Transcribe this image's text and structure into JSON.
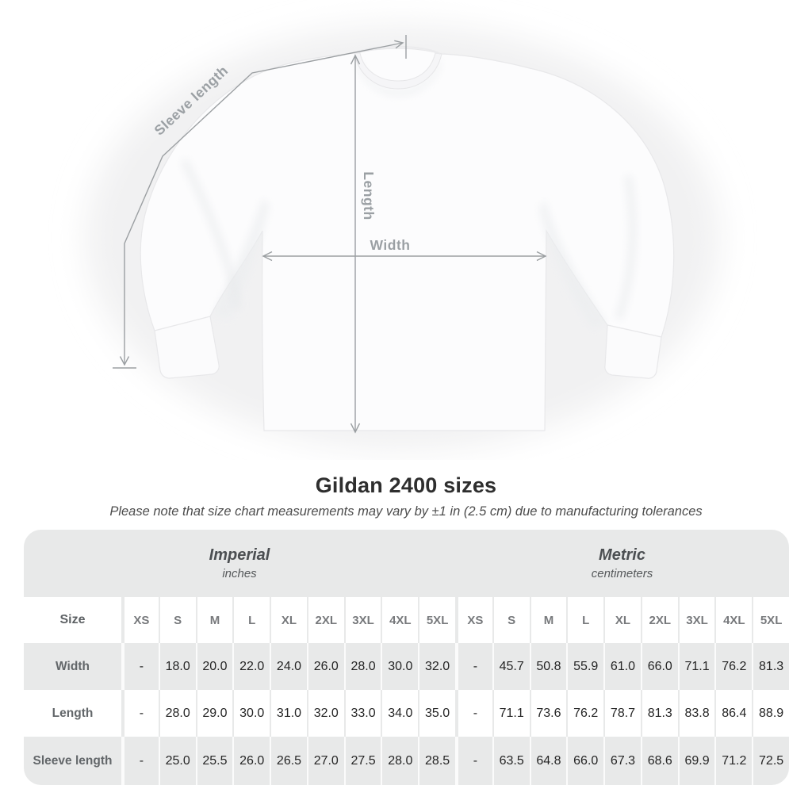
{
  "heading": {
    "title": "Gildan 2400 sizes",
    "subtitle": "Please note that size chart measurements may vary by ±1 in (2.5 cm) due to manufacturing tolerances"
  },
  "diagram": {
    "labels": {
      "sleeve_length": "Sleeve length",
      "length": "Length",
      "width": "Width"
    },
    "line_color": "#9b9fa2",
    "label_color": "#9ba0a4",
    "shirt_color": "#fcfcfd"
  },
  "chart_data": {
    "type": "table",
    "title": "Gildan 2400 sizes",
    "unit_groups": [
      {
        "label": "Imperial",
        "sublabel": "inches"
      },
      {
        "label": "Metric",
        "sublabel": "centimeters"
      }
    ],
    "size_label": "Size",
    "sizes": [
      "XS",
      "S",
      "M",
      "L",
      "XL",
      "2XL",
      "3XL",
      "4XL",
      "5XL"
    ],
    "rows": [
      {
        "label": "Width",
        "imperial": [
          "-",
          "18.0",
          "20.0",
          "22.0",
          "24.0",
          "26.0",
          "28.0",
          "30.0",
          "32.0"
        ],
        "metric": [
          "-",
          "45.7",
          "50.8",
          "55.9",
          "61.0",
          "66.0",
          "71.1",
          "76.2",
          "81.3"
        ]
      },
      {
        "label": "Length",
        "imperial": [
          "-",
          "28.0",
          "29.0",
          "30.0",
          "31.0",
          "32.0",
          "33.0",
          "34.0",
          "35.0"
        ],
        "metric": [
          "-",
          "71.1",
          "73.6",
          "76.2",
          "78.7",
          "81.3",
          "83.8",
          "86.4",
          "88.9"
        ]
      },
      {
        "label": "Sleeve length",
        "imperial": [
          "-",
          "25.0",
          "25.5",
          "26.0",
          "26.5",
          "27.0",
          "27.5",
          "28.0",
          "28.5"
        ],
        "metric": [
          "-",
          "63.5",
          "64.8",
          "66.0",
          "67.3",
          "68.6",
          "69.9",
          "71.2",
          "72.5"
        ]
      }
    ],
    "colors": {
      "band_gray": "#e8e9e9",
      "stripe_gray": "#e8e9e9",
      "row_white": "#ffffff",
      "header_text": "#77797c",
      "value_text": "#252525",
      "row_label_text": "#63676a"
    }
  }
}
